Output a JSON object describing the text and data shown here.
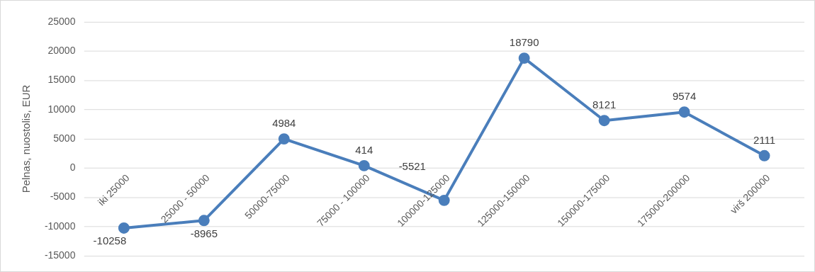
{
  "chart_data": {
    "type": "line",
    "ylabel": "Pelnas, nuostolis, EUR",
    "categories": [
      "iki 25000",
      "25000 - 50000",
      "50000-75000",
      "75000 - 100000",
      "100000-125000",
      "125000-150000",
      "150000-175000",
      "175000-200000",
      "virš 200000"
    ],
    "series": [
      {
        "color": "#4a7ebb",
        "values": [
          -10258,
          -8965,
          4984,
          414,
          -5521,
          18790,
          8121,
          9574,
          2111
        ]
      }
    ],
    "ylim": [
      -15000,
      25000
    ],
    "yticks": [
      -15000,
      -10000,
      -5000,
      0,
      5000,
      10000,
      15000,
      20000,
      25000
    ],
    "grid": "y",
    "legend": false,
    "marker": "circle",
    "line_style": "solid",
    "data_labels": true
  }
}
